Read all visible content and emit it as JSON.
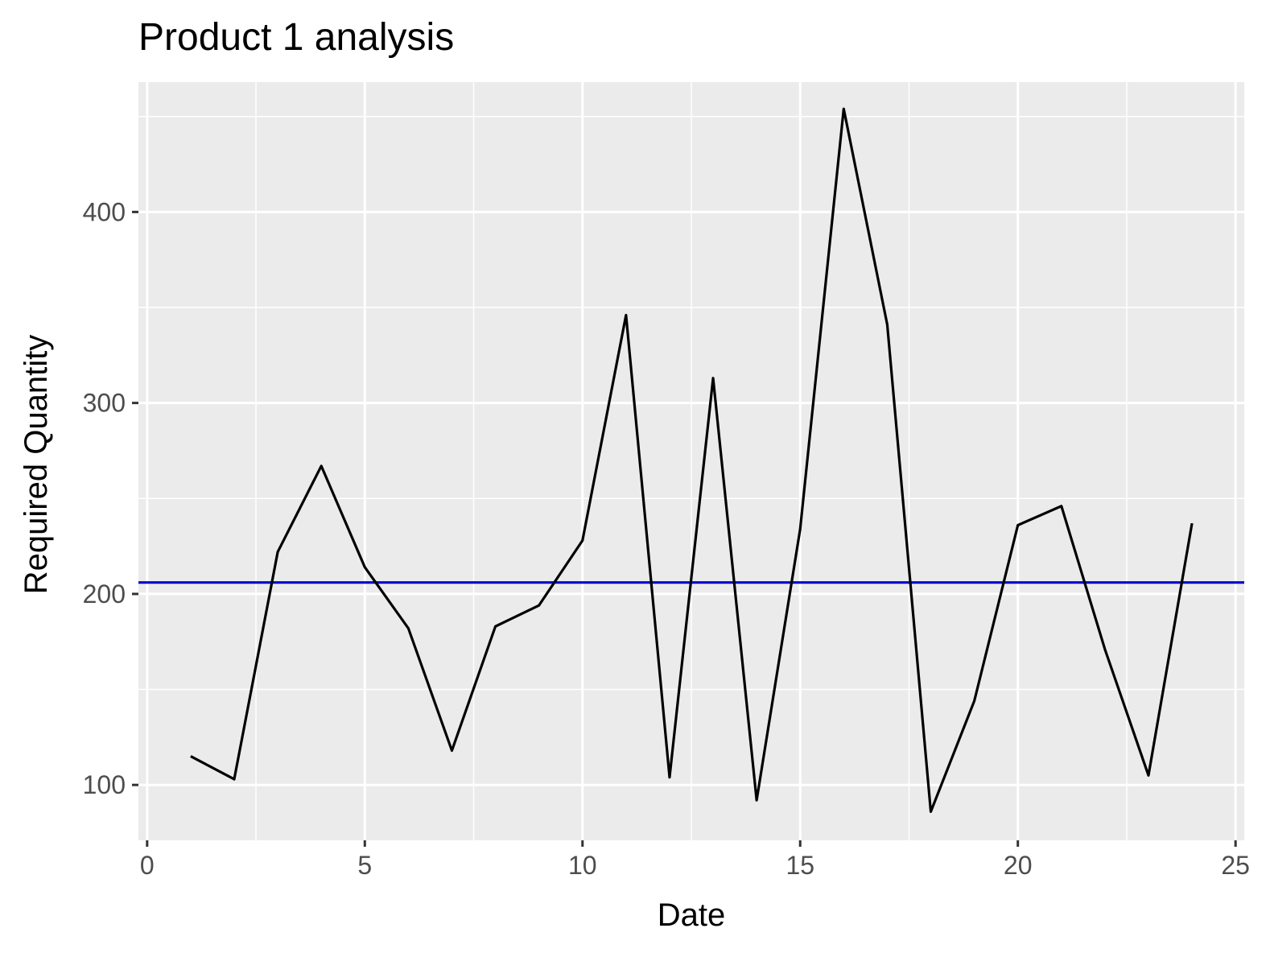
{
  "chart_data": {
    "type": "line",
    "title": "Product 1 analysis",
    "xlabel": "Date",
    "ylabel": "Required Quantity",
    "xlim": [
      -0.2,
      25.2
    ],
    "ylim": [
      71,
      468
    ],
    "x_ticks": [
      0,
      5,
      10,
      15,
      20,
      25
    ],
    "y_ticks": [
      100,
      200,
      300,
      400
    ],
    "x_tick_labels": [
      "0",
      "5",
      "10",
      "15",
      "20",
      "25"
    ],
    "y_tick_labels": [
      "100",
      "200",
      "300",
      "400"
    ],
    "x_minor_ticks": [
      2.5,
      7.5,
      12.5,
      17.5,
      22.5
    ],
    "y_minor_ticks": [
      150,
      250,
      350,
      450
    ],
    "grid": true,
    "legend": "none",
    "background_color": "#ebebeb",
    "grid_color": "#ffffff",
    "series": [
      {
        "color": "#000000",
        "x": [
          1,
          2,
          3,
          4,
          5,
          6,
          7,
          8,
          9,
          10,
          11,
          12,
          13,
          14,
          15,
          16,
          17,
          18,
          19,
          20,
          21,
          22,
          23,
          24
        ],
        "values": [
          115,
          103,
          222,
          267,
          214,
          182,
          118,
          183,
          194,
          228,
          346,
          104,
          313,
          92,
          234,
          454,
          341,
          86,
          144,
          236,
          246,
          171,
          105,
          237
        ]
      }
    ],
    "hline": {
      "y": 206,
      "color": "#0000cc"
    }
  }
}
